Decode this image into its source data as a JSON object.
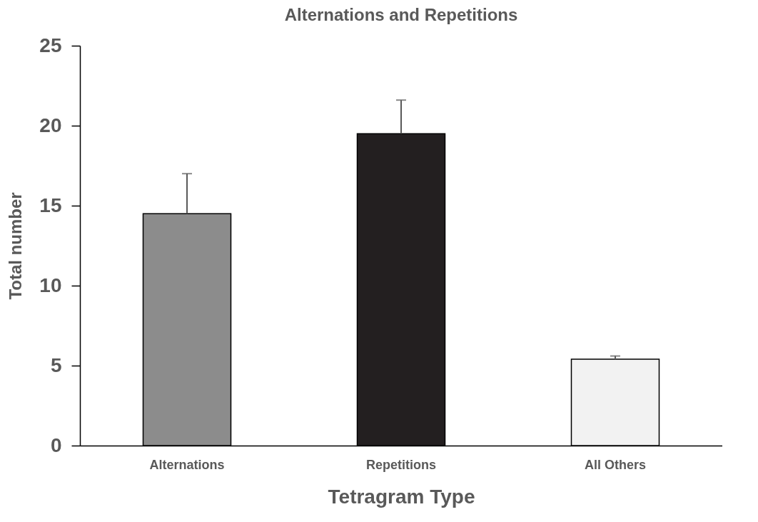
{
  "chart_data": {
    "type": "bar",
    "title": "Alternations and Repetitions",
    "xlabel": "Tetragram Type",
    "ylabel": "Total number",
    "categories": [
      "Alternations",
      "Repetitions",
      "All Others"
    ],
    "values": [
      14.5,
      19.5,
      5.4
    ],
    "colors": [
      "#8c8c8c",
      "#231f20",
      "#f2f2f2"
    ],
    "errors": [
      [
        14.5,
        17.0
      ],
      [
        19.5,
        21.6
      ],
      [
        5.4,
        5.6
      ]
    ],
    "ylim": [
      0,
      25
    ],
    "yticks": [
      0,
      5,
      10,
      15,
      20,
      25
    ],
    "grid": false
  }
}
